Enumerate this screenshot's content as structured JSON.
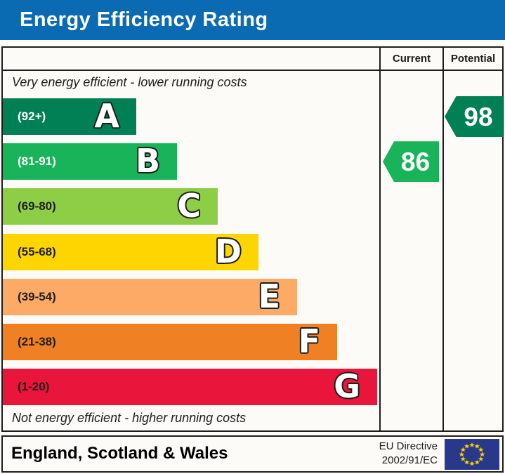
{
  "title": "Energy Efficiency Rating",
  "columns": {
    "current": "Current",
    "potential": "Potential"
  },
  "footer": {
    "region": "England, Scotland & Wales",
    "directive_line1": "EU Directive",
    "directive_line2": "2002/91/EC"
  },
  "theme": {
    "title_bg": "#0b6bb2",
    "border": "#1d1d1b",
    "eu_flag_bg": "#28398c",
    "eu_flag_stars": "#ffcc00"
  },
  "chart_data": {
    "type": "bar",
    "title": "Energy Efficiency Rating",
    "annotations": {
      "top": "Very energy efficient - lower running costs",
      "bottom": "Not energy efficient - higher running costs"
    },
    "bands": [
      {
        "letter": "A",
        "range": "(92+)",
        "color": "#008054",
        "label_color": "#ffffff"
      },
      {
        "letter": "B",
        "range": "(81-91)",
        "color": "#19b459",
        "label_color": "#ffffff"
      },
      {
        "letter": "C",
        "range": "(69-80)",
        "color": "#8dce46",
        "label_color": "#1d1d1b"
      },
      {
        "letter": "D",
        "range": "(55-68)",
        "color": "#ffd500",
        "label_color": "#1d1d1b"
      },
      {
        "letter": "E",
        "range": "(39-54)",
        "color": "#fcaa65",
        "label_color": "#1d1d1b"
      },
      {
        "letter": "F",
        "range": "(21-38)",
        "color": "#ef8023",
        "label_color": "#1d1d1b"
      },
      {
        "letter": "G",
        "range": "(1-20)",
        "color": "#e9153b",
        "label_color": "#1d1d1b"
      }
    ],
    "ratings": {
      "current": {
        "value": 86,
        "band": "B",
        "color": "#19b459"
      },
      "potential": {
        "value": 98,
        "band": "A",
        "color": "#008054"
      }
    }
  }
}
